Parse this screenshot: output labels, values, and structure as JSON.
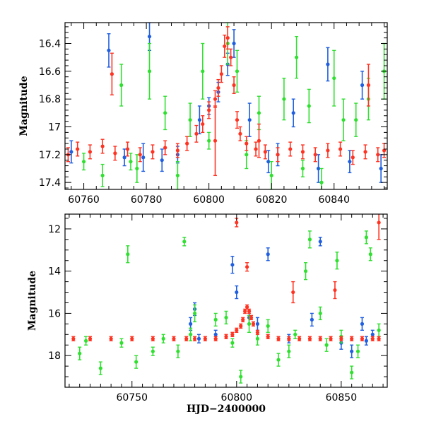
{
  "chart_data": [
    {
      "type": "scatter",
      "title": "",
      "xlabel": "",
      "ylabel": "Magnitude",
      "xlim": [
        60754,
        60857
      ],
      "ylim": [
        17.45,
        16.25
      ],
      "y_inverted": true,
      "xticks": [
        60760,
        60780,
        60800,
        60820,
        60840
      ],
      "yticks": [
        16.4,
        16.6,
        16.8,
        17,
        17.2,
        17.4
      ],
      "xtick_labels": [
        "60760",
        "60780",
        "60800",
        "60820",
        "60840"
      ],
      "ytick_labels": [
        "16.4",
        "16.6",
        "16.8",
        "17",
        "17.2",
        "17.4"
      ],
      "series": [
        {
          "color": "#1f5fe0",
          "x": [
            60756,
            60768,
            60779,
            60781,
            60785,
            60797,
            60803,
            60806,
            60808,
            60813,
            60819,
            60827,
            60835,
            60838,
            60849,
            60855,
            60773,
            60790,
            60800,
            60822,
            60845
          ],
          "y": [
            17.18,
            16.45,
            17.22,
            16.35,
            17.24,
            16.95,
            16.75,
            16.55,
            16.4,
            16.95,
            17.25,
            16.9,
            17.3,
            16.55,
            16.7,
            17.3,
            17.22,
            17.2,
            16.85,
            17.2,
            17.25
          ],
          "err": [
            0.08,
            0.12,
            0.1,
            0.1,
            0.08,
            0.1,
            0.07,
            0.08,
            0.1,
            0.12,
            0.08,
            0.1,
            0.1,
            0.12,
            0.1,
            0.1,
            0.06,
            0.06,
            0.06,
            0.08,
            0.08
          ]
        },
        {
          "color": "#30e030",
          "x": [
            60766,
            60772,
            60777,
            60781,
            60786,
            60790,
            60794,
            60798,
            60806,
            60809,
            60812,
            60816,
            60820,
            60824,
            60828,
            60832,
            60836,
            60840,
            60843,
            60847,
            60851,
            60856,
            60760,
            60775,
            60800,
            60830
          ],
          "y": [
            17.35,
            16.7,
            17.3,
            16.6,
            16.9,
            17.35,
            16.95,
            16.6,
            16.4,
            16.6,
            17.2,
            16.9,
            17.35,
            16.8,
            16.5,
            16.85,
            17.4,
            16.65,
            16.95,
            16.95,
            16.8,
            16.6,
            17.25,
            17.25,
            17.1,
            17.3
          ],
          "err": [
            0.08,
            0.15,
            0.1,
            0.2,
            0.12,
            0.1,
            0.12,
            0.2,
            0.15,
            0.15,
            0.1,
            0.12,
            0.1,
            0.15,
            0.15,
            0.12,
            0.1,
            0.2,
            0.15,
            0.12,
            0.15,
            0.2,
            0.06,
            0.06,
            0.06,
            0.06
          ]
        },
        {
          "color": "#ff3322",
          "x": [
            60755,
            60758,
            60762,
            60766,
            60770,
            60774,
            60778,
            60782,
            60786,
            60790,
            60793,
            60796,
            60798,
            60800,
            60802,
            60803,
            60804,
            60805,
            60806,
            60807,
            60808,
            60809,
            60810,
            60812,
            60815,
            60818,
            60822,
            60826,
            60830,
            60834,
            60838,
            60842,
            60846,
            60850,
            60854,
            60856,
            60769,
            60802,
            60816,
            60851
          ],
          "y": [
            17.2,
            17.16,
            17.18,
            17.14,
            17.19,
            17.16,
            17.2,
            17.18,
            17.15,
            17.17,
            17.12,
            17.05,
            16.98,
            16.88,
            16.8,
            16.72,
            16.62,
            16.42,
            16.36,
            16.5,
            16.7,
            16.95,
            17.05,
            17.12,
            17.16,
            17.18,
            17.2,
            17.16,
            17.18,
            17.2,
            17.17,
            17.16,
            17.22,
            17.18,
            17.2,
            17.17,
            16.62,
            17.1,
            17.1,
            16.7
          ],
          "err": [
            0.05,
            0.05,
            0.05,
            0.05,
            0.05,
            0.05,
            0.05,
            0.05,
            0.05,
            0.05,
            0.05,
            0.06,
            0.06,
            0.06,
            0.06,
            0.06,
            0.06,
            0.08,
            0.08,
            0.06,
            0.06,
            0.06,
            0.05,
            0.05,
            0.05,
            0.05,
            0.05,
            0.05,
            0.05,
            0.05,
            0.05,
            0.05,
            0.05,
            0.05,
            0.05,
            0.05,
            0.15,
            0.25,
            0.12,
            0.15
          ]
        }
      ]
    },
    {
      "type": "scatter",
      "title": "",
      "xlabel": "HJD−2400000",
      "ylabel": "Magnitude",
      "xlim": [
        60718,
        60872
      ],
      "ylim": [
        19.5,
        11.3
      ],
      "y_inverted": true,
      "xticks": [
        60750,
        60800,
        60850
      ],
      "yticks": [
        12,
        14,
        16,
        18
      ],
      "xtick_labels": [
        "60750",
        "60800",
        "60850"
      ],
      "ytick_labels": [
        "12",
        "14",
        "16",
        "18"
      ],
      "series": [
        {
          "color": "#1f5fe0",
          "x": [
            60778,
            60780,
            60782,
            60790,
            60798,
            60800,
            60806,
            60810,
            60815,
            60825,
            60836,
            60840,
            60850,
            60855,
            60860,
            60862,
            60865
          ],
          "y": [
            16.5,
            15.8,
            17.2,
            17.0,
            13.7,
            15.0,
            16.2,
            16.5,
            13.2,
            17.2,
            16.3,
            12.6,
            17.4,
            17.8,
            16.5,
            17.3,
            17.0
          ],
          "err": [
            0.3,
            0.3,
            0.2,
            0.2,
            0.4,
            0.3,
            0.3,
            0.3,
            0.3,
            0.2,
            0.3,
            0.2,
            0.3,
            0.3,
            0.3,
            0.2,
            0.2
          ]
        },
        {
          "color": "#30e030",
          "x": [
            60725,
            60728,
            60735,
            60745,
            60748,
            60752,
            60760,
            60765,
            60772,
            60775,
            60778,
            60780,
            60790,
            60795,
            60798,
            60802,
            60806,
            60810,
            60815,
            60820,
            60825,
            60828,
            60833,
            60835,
            60840,
            60843,
            60848,
            60850,
            60855,
            60858,
            60862,
            60864,
            60868
          ],
          "y": [
            17.9,
            17.3,
            18.6,
            17.4,
            13.2,
            18.3,
            17.8,
            17.2,
            17.8,
            12.6,
            17.0,
            16.0,
            16.3,
            16.2,
            17.4,
            19.0,
            16.5,
            17.2,
            16.6,
            18.2,
            17.8,
            17.0,
            14.0,
            12.5,
            16.0,
            17.5,
            13.5,
            17.1,
            18.8,
            17.8,
            12.4,
            13.2,
            16.8
          ],
          "err": [
            0.3,
            0.2,
            0.3,
            0.2,
            0.4,
            0.3,
            0.2,
            0.2,
            0.3,
            0.2,
            0.3,
            0.4,
            0.3,
            0.3,
            0.2,
            0.3,
            0.4,
            0.3,
            0.3,
            0.3,
            0.3,
            0.2,
            0.4,
            0.4,
            0.3,
            0.3,
            0.4,
            0.3,
            0.3,
            0.3,
            0.3,
            0.3,
            0.3
          ]
        },
        {
          "color": "#ff3322",
          "x": [
            60722,
            60730,
            60740,
            60750,
            60760,
            60770,
            60776,
            60780,
            60785,
            60790,
            60795,
            60798,
            60800,
            60802,
            60803,
            60804,
            60805,
            60806,
            60807,
            60808,
            60810,
            60815,
            60820,
            60825,
            60830,
            60835,
            60840,
            60845,
            60850,
            60855,
            60860,
            60865,
            60868,
            60800,
            60805,
            60827,
            60847,
            60868
          ],
          "y": [
            17.2,
            17.2,
            17.2,
            17.2,
            17.2,
            17.2,
            17.2,
            17.2,
            17.2,
            17.2,
            17.1,
            17.0,
            16.8,
            16.6,
            16.3,
            15.9,
            15.7,
            15.9,
            16.2,
            16.5,
            16.9,
            17.1,
            17.2,
            17.2,
            17.2,
            17.2,
            17.2,
            17.2,
            17.2,
            17.2,
            17.2,
            17.2,
            17.2,
            11.7,
            13.8,
            15.0,
            14.9,
            11.7
          ],
          "err": [
            0.1,
            0.1,
            0.1,
            0.1,
            0.1,
            0.1,
            0.1,
            0.1,
            0.1,
            0.1,
            0.1,
            0.1,
            0.1,
            0.1,
            0.1,
            0.1,
            0.1,
            0.1,
            0.1,
            0.1,
            0.1,
            0.1,
            0.1,
            0.1,
            0.1,
            0.1,
            0.1,
            0.1,
            0.1,
            0.1,
            0.1,
            0.1,
            0.1,
            0.2,
            0.2,
            0.5,
            0.4,
            0.8
          ]
        }
      ]
    }
  ]
}
